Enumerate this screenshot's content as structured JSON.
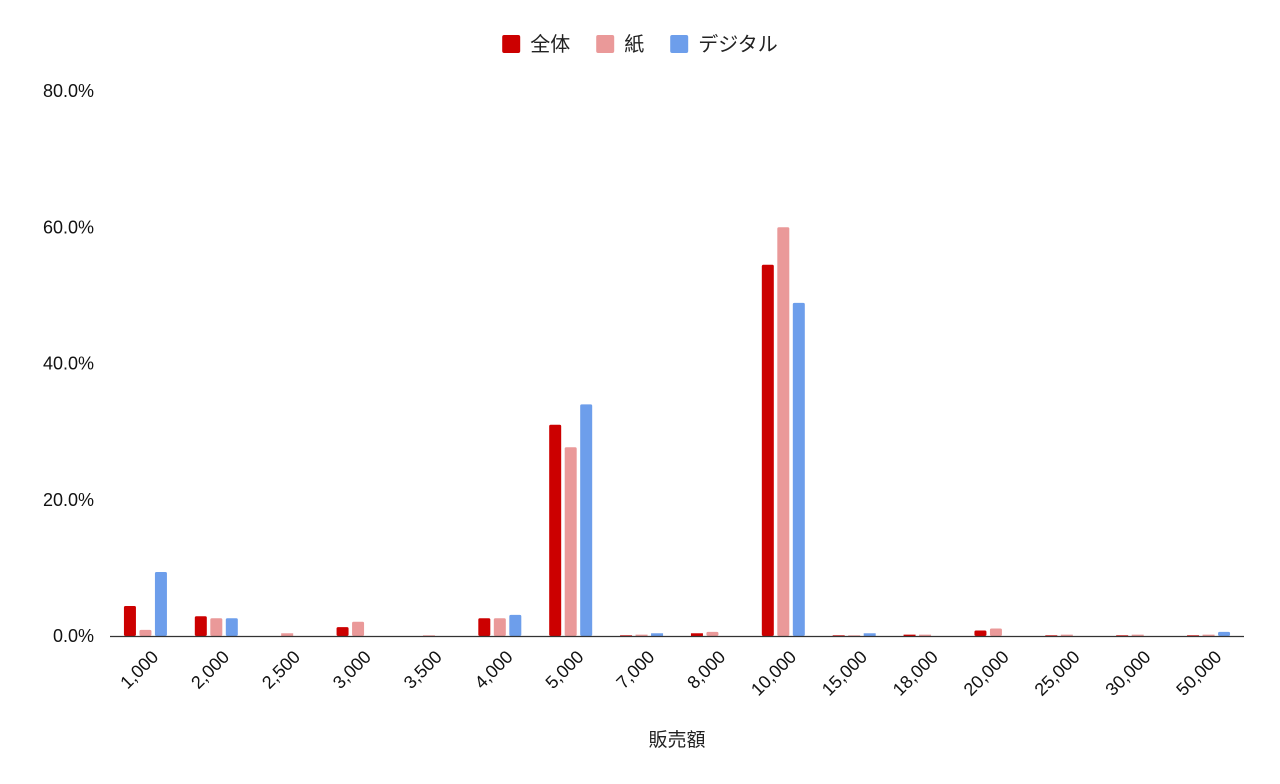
{
  "chart_data": {
    "type": "bar",
    "title": "",
    "xlabel": "販売額",
    "ylabel": "",
    "categories": [
      "1,000",
      "2,000",
      "2,500",
      "3,000",
      "3,500",
      "4,000",
      "5,000",
      "7,000",
      "8,000",
      "10,000",
      "15,000",
      "18,000",
      "20,000",
      "25,000",
      "30,000",
      "50,000"
    ],
    "series": [
      {
        "name": "全体",
        "color": "#cc0000",
        "values": [
          4.4,
          2.9,
          0.0,
          1.3,
          0.0,
          2.6,
          31.0,
          0.1,
          0.4,
          54.5,
          0.1,
          0.2,
          0.8,
          0.1,
          0.1,
          0.1
        ]
      },
      {
        "name": "紙",
        "color": "#ea9999",
        "values": [
          0.9,
          2.6,
          0.4,
          2.1,
          0.1,
          2.6,
          27.7,
          0.2,
          0.6,
          60.0,
          0.1,
          0.2,
          1.1,
          0.2,
          0.2,
          0.2
        ]
      },
      {
        "name": "デジタル",
        "color": "#6d9eeb",
        "values": [
          9.4,
          2.6,
          0.0,
          0.0,
          0.0,
          3.1,
          34.0,
          0.4,
          0.0,
          48.9,
          0.4,
          0.0,
          0.0,
          0.0,
          0.0,
          0.6
        ]
      }
    ],
    "ylim": [
      0,
      80
    ],
    "yticks": [
      "0.0%",
      "20.0%",
      "40.0%",
      "60.0%",
      "80.0%"
    ],
    "ytick_values": [
      0,
      20,
      40,
      60,
      80
    ],
    "legend_position": "top-center",
    "grid": false
  }
}
